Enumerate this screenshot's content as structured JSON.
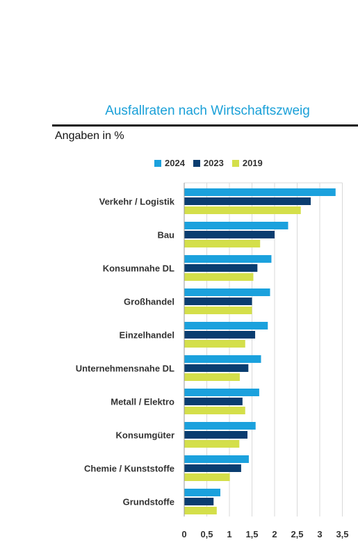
{
  "title": "Ausfallraten nach Wirtschaftszweig",
  "subtitle": "Angaben in %",
  "colors": {
    "2024": "#1ba1dd",
    "2023": "#0a3d70",
    "2019": "#d4df4a",
    "grid": "#d9d9d9",
    "title": "#1aa0d8"
  },
  "chart_data": {
    "type": "bar",
    "orientation": "horizontal",
    "title": "Ausfallraten nach Wirtschaftszweig",
    "subtitle": "Angaben in %",
    "legend_position": "top",
    "grid": true,
    "xlim": [
      0,
      3.5
    ],
    "xticks": [
      "0",
      "0,5",
      "1",
      "1,5",
      "2",
      "2,5",
      "3",
      "3,5"
    ],
    "categories": [
      "Verkehr / Logistik",
      "Bau",
      "Konsumnahe DL",
      "Großhandel",
      "Einzelhandel",
      "Unternehmensnahe DL",
      "Metall / Elektro",
      "Konsumgüter",
      "Chemie / Kunststoffe",
      "Grundstoffe"
    ],
    "series": [
      {
        "name": "2024",
        "color": "#1ba1dd",
        "values": [
          3.35,
          2.3,
          1.93,
          1.9,
          1.85,
          1.7,
          1.66,
          1.58,
          1.43,
          0.8
        ]
      },
      {
        "name": "2023",
        "color": "#0a3d70",
        "values": [
          2.8,
          2.0,
          1.62,
          1.5,
          1.57,
          1.42,
          1.29,
          1.4,
          1.26,
          0.65
        ]
      },
      {
        "name": "2019",
        "color": "#d4df4a",
        "values": [
          2.58,
          1.68,
          1.53,
          1.5,
          1.35,
          1.23,
          1.35,
          1.22,
          1.01,
          0.72
        ]
      }
    ]
  }
}
